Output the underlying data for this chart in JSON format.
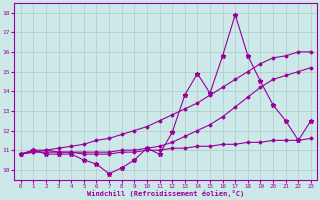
{
  "xlabel": "Windchill (Refroidissement éolien,°C)",
  "x": [
    0,
    1,
    2,
    3,
    4,
    5,
    6,
    7,
    8,
    9,
    10,
    11,
    12,
    13,
    14,
    15,
    16,
    17,
    18,
    19,
    20,
    21,
    22,
    23
  ],
  "line_jagged": [
    10.8,
    11.0,
    10.8,
    10.8,
    10.8,
    10.5,
    10.3,
    9.8,
    10.1,
    10.5,
    11.1,
    10.8,
    11.9,
    13.8,
    14.9,
    13.9,
    15.8,
    17.9,
    15.8,
    14.5,
    13.3,
    12.5,
    11.5,
    12.5
  ],
  "line_smooth": [
    10.8,
    10.9,
    10.9,
    10.9,
    10.9,
    10.9,
    10.9,
    10.9,
    11.0,
    11.0,
    11.1,
    11.2,
    11.4,
    11.7,
    12.0,
    12.3,
    12.7,
    13.2,
    13.7,
    14.2,
    14.6,
    14.8,
    15.0,
    15.2
  ],
  "line_flat": [
    10.8,
    11.0,
    11.0,
    10.9,
    10.9,
    10.8,
    10.8,
    10.8,
    10.9,
    10.9,
    11.0,
    11.0,
    11.1,
    11.1,
    11.2,
    11.2,
    11.3,
    11.3,
    11.4,
    11.4,
    11.5,
    11.5,
    11.5,
    11.6
  ],
  "line_diagonal": [
    10.8,
    10.9,
    11.0,
    11.1,
    11.2,
    11.3,
    11.5,
    11.6,
    11.8,
    12.0,
    12.2,
    12.5,
    12.8,
    13.1,
    13.4,
    13.8,
    14.2,
    14.6,
    15.0,
    15.4,
    15.7,
    15.8,
    16.0,
    16.0
  ],
  "ylim": [
    9.5,
    18.5
  ],
  "xlim": [
    -0.5,
    23.5
  ],
  "yticks": [
    10,
    11,
    12,
    13,
    14,
    15,
    16,
    17,
    18
  ],
  "line_color": "#990099",
  "bg_color": "#cce8e8",
  "grid_color": "#b0c8c8"
}
